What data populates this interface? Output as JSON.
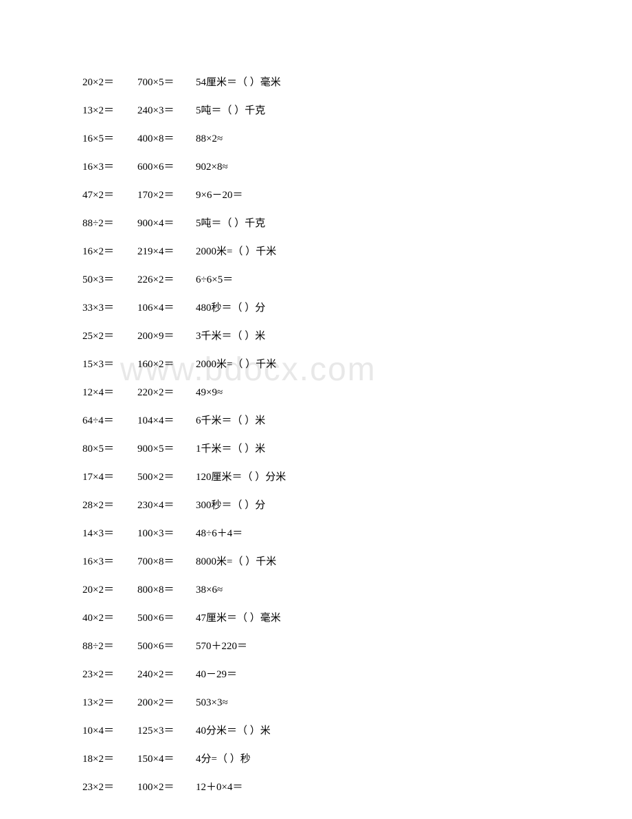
{
  "watermark": "www.bdocx.com",
  "rows": [
    {
      "c1": "20×2＝",
      "c2": "700×5＝",
      "c3": "54厘米＝（ ）毫米"
    },
    {
      "c1": "13×2＝",
      "c2": "240×3＝",
      "c3": "5吨＝（ ）千克"
    },
    {
      "c1": "16×5＝",
      "c2": "400×8＝",
      "c3": "88×2≈"
    },
    {
      "c1": "16×3＝",
      "c2": "600×6＝",
      "c3": "902×8≈"
    },
    {
      "c1": "47×2＝",
      "c2": "170×2＝",
      "c3": "9×6－20＝"
    },
    {
      "c1": "88÷2＝",
      "c2": "900×4＝",
      "c3": "5吨＝（ ）千克"
    },
    {
      "c1": "16×2＝",
      "c2": "219×4＝",
      "c3": "2000米=（ ）千米"
    },
    {
      "c1": "50×3＝",
      "c2": "226×2＝",
      "c3": "6÷6×5＝"
    },
    {
      "c1": "33×3＝",
      "c2": "106×4＝",
      "c3": "480秒＝（ ）分"
    },
    {
      "c1": "25×2＝",
      "c2": "200×9＝",
      "c3": "3千米＝（ ）米"
    },
    {
      "c1": "15×3＝",
      "c2": "160×2＝",
      "c3": "2000米=（ ）千米"
    },
    {
      "c1": "12×4＝",
      "c2": "220×2＝",
      "c3": "49×9≈"
    },
    {
      "c1": "64÷4＝",
      "c2": "104×4＝",
      "c3": "6千米＝（ ）米"
    },
    {
      "c1": "80×5＝",
      "c2": "900×5＝",
      "c3": "1千米＝（ ）米"
    },
    {
      "c1": "17×4＝",
      "c2": "500×2＝",
      "c3": "120厘米＝（ ）分米"
    },
    {
      "c1": "28×2＝",
      "c2": "230×4＝",
      "c3": "300秒＝（ ）分"
    },
    {
      "c1": "14×3＝",
      "c2": "100×3＝",
      "c3": "48÷6＋4＝"
    },
    {
      "c1": "16×3＝",
      "c2": "700×8＝",
      "c3": "8000米=（ ）千米"
    },
    {
      "c1": "20×2＝",
      "c2": "800×8＝",
      "c3": "38×6≈"
    },
    {
      "c1": "40×2＝",
      "c2": "500×6＝",
      "c3": "47厘米＝（ ）毫米"
    },
    {
      "c1": "88÷2＝",
      "c2": "500×6＝",
      "c3": "570＋220＝"
    },
    {
      "c1": "23×2＝",
      "c2": "240×2＝",
      "c3": "40－29＝"
    },
    {
      "c1": "13×2＝",
      "c2": "200×2＝",
      "c3": "503×3≈"
    },
    {
      "c1": "10×4＝",
      "c2": "125×3＝",
      "c3": "40分米＝（ ）米"
    },
    {
      "c1": "18×2＝",
      "c2": "150×4＝",
      "c3": "4分=（ ）秒"
    },
    {
      "c1": "23×2＝",
      "c2": "100×2＝",
      "c3": "12＋0×4＝"
    }
  ]
}
